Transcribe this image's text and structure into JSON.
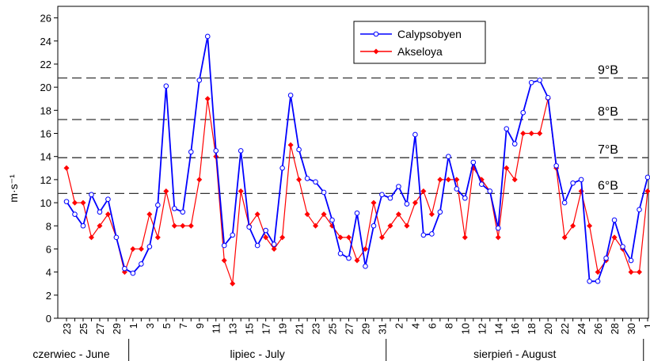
{
  "chart_data": {
    "type": "line",
    "y_label": "m·s⁻¹",
    "categories": [
      "23",
      null,
      "25",
      null,
      "27",
      null,
      "29",
      null,
      "1",
      null,
      "3",
      null,
      "5",
      null,
      "7",
      null,
      "9",
      null,
      "11",
      null,
      "13",
      null,
      "15",
      null,
      "17",
      null,
      "19",
      null,
      "21",
      null,
      "23",
      null,
      "25",
      null,
      "27",
      null,
      "29",
      null,
      "31",
      null,
      "2",
      null,
      "4",
      null,
      "6",
      null,
      "8",
      null,
      "10",
      null,
      "12",
      null,
      "14",
      null,
      "16",
      null,
      "18",
      null,
      "20",
      null,
      "22",
      null,
      "24",
      null,
      "26",
      null,
      "28",
      null,
      "30",
      null,
      "1"
    ],
    "groups": [
      "czerwiec - June",
      "lipiec - July",
      "sierpień - August"
    ],
    "series": [
      {
        "name": "Calypsobyen",
        "color": "#0000ff",
        "marker": "circle",
        "values": [
          10.1,
          9.0,
          8.0,
          10.7,
          9.2,
          10.3,
          7.0,
          4.3,
          3.9,
          4.7,
          6.2,
          9.8,
          20.1,
          9.5,
          9.2,
          14.4,
          20.6,
          24.4,
          14.5,
          6.3,
          7.2,
          14.5,
          7.9,
          6.3,
          7.6,
          6.4,
          13.0,
          19.3,
          14.6,
          12.1,
          11.8,
          10.9,
          8.5,
          5.6,
          5.2,
          9.1,
          4.5,
          8.0,
          10.7,
          10.4,
          11.4,
          9.9,
          15.9,
          7.2,
          7.3,
          9.2,
          14.0,
          11.2,
          10.4,
          13.5,
          11.6,
          11.0,
          7.8,
          16.4,
          15.1,
          17.8,
          20.4,
          20.6,
          19.1,
          13.2,
          10.0,
          11.7,
          12.0,
          3.2,
          3.2,
          5.2,
          8.5,
          6.2,
          5.0,
          9.4,
          12.2
        ]
      },
      {
        "name": "Akseloya",
        "color": "#ff0000",
        "marker": "diamond",
        "values": [
          13,
          10,
          10,
          7,
          8,
          9,
          7,
          4,
          6,
          6,
          9,
          7,
          11,
          8,
          8,
          8,
          12,
          19,
          14,
          5,
          3,
          11,
          8,
          9,
          7,
          6,
          7,
          15,
          12,
          9,
          8,
          9,
          8,
          7,
          7,
          5,
          6,
          10,
          7,
          8,
          9,
          8,
          10,
          11,
          9,
          12,
          12,
          12,
          7,
          13,
          12,
          11,
          7,
          13,
          12,
          16,
          16,
          16,
          19,
          13,
          7,
          8,
          11,
          8,
          4,
          5,
          7,
          6,
          4,
          4,
          11
        ]
      }
    ],
    "reference_lines": [
      {
        "value": 20.8,
        "label": "9°B"
      },
      {
        "value": 17.2,
        "label": "8°B"
      },
      {
        "value": 13.9,
        "label": "7°B"
      },
      {
        "value": 10.8,
        "label": "6°B"
      }
    ],
    "ylim": [
      0,
      27
    ],
    "yticks": [
      0,
      2,
      4,
      6,
      8,
      10,
      12,
      14,
      16,
      18,
      20,
      22,
      24,
      26
    ],
    "legend": "top"
  }
}
